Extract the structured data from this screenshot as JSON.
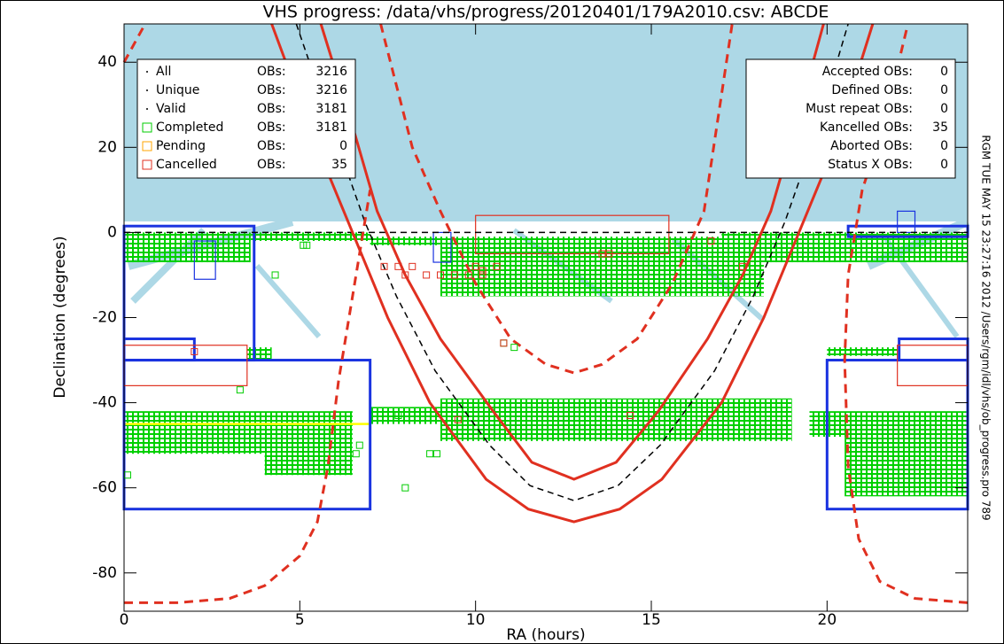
{
  "chart_data": {
    "type": "scatter",
    "title": "VHS progress: /data/vhs/progress/20120401/179A2010.csv: ABCDE",
    "xlabel": "RA (hours)",
    "ylabel": "Declination (degrees)",
    "side_note": "RGM TUE MAY 15 23:27:16 2012 /Users/rgm/idl/vhs/ob_progress.pro 789",
    "xlim": [
      0,
      24
    ],
    "ylim": [
      -89,
      49
    ],
    "xticks": [
      0,
      5,
      10,
      15,
      20
    ],
    "yticks": [
      -80,
      -60,
      -40,
      -20,
      0,
      20,
      40
    ],
    "legend": [
      {
        "name": "All",
        "unit": "OBs:",
        "count": 3216,
        "symbol": "dot",
        "color": "#000000"
      },
      {
        "name": "Unique",
        "unit": "OBs:",
        "count": 3216,
        "symbol": "dot",
        "color": "#000000"
      },
      {
        "name": "Valid",
        "unit": "OBs:",
        "count": 3181,
        "symbol": "dot",
        "color": "#000000"
      },
      {
        "name": "Completed",
        "unit": "OBs:",
        "count": 3181,
        "symbol": "square",
        "color": "#00cc00"
      },
      {
        "name": "Pending",
        "unit": "OBs:",
        "count": 0,
        "symbol": "square",
        "color": "#ffa500"
      },
      {
        "name": "Cancelled",
        "unit": "OBs:",
        "count": 35,
        "symbol": "square",
        "color": "#e03020"
      }
    ],
    "status_counts": [
      {
        "name": "Accepted OBs:",
        "count": 0
      },
      {
        "name": "Defined OBs:",
        "count": 0
      },
      {
        "name": "Must repeat OBs:",
        "count": 0
      },
      {
        "name": "Kancelled OBs:",
        "count": 35
      },
      {
        "name": "Aborted OBs:",
        "count": 0
      },
      {
        "name": "Status X OBs:",
        "count": 0
      }
    ],
    "fields": [
      {
        "color": "#00cc00",
        "fill": "hatch",
        "width": 0,
        "boxes": [
          [
            0,
            3.6,
            -7,
            0
          ],
          [
            3.6,
            7,
            -2,
            0
          ],
          [
            7,
            17.5,
            -3,
            -1
          ],
          [
            9,
            18.2,
            -15,
            -3
          ],
          [
            17,
            24,
            -7,
            0
          ],
          [
            3.5,
            4.2,
            -30,
            -27
          ],
          [
            7,
            9,
            -45,
            -41
          ],
          [
            9,
            19,
            -49,
            -39
          ],
          [
            0,
            6.5,
            -52,
            -42
          ],
          [
            4,
            6.5,
            -57,
            -52
          ],
          [
            19.5,
            24,
            -48,
            -42
          ],
          [
            20.5,
            24,
            -62,
            -48
          ],
          [
            20,
            22,
            -29,
            -27
          ]
        ]
      },
      {
        "color": "#ffff00",
        "fill": "none",
        "width": 2.5,
        "boxes": [
          [
            0,
            7,
            -65,
            -45
          ]
        ]
      },
      {
        "color": "#1a33e0",
        "fill": "none",
        "width": 3,
        "boxes": [
          [
            0,
            3.7,
            -30,
            1.5
          ],
          [
            0,
            2,
            -30,
            -25
          ],
          [
            0,
            7,
            -65,
            -30
          ],
          [
            20,
            24,
            -65,
            -30
          ],
          [
            20.6,
            24,
            -1,
            1.5
          ],
          [
            22.05,
            24,
            -30,
            -25
          ]
        ]
      },
      {
        "color": "#1a33e0",
        "fill": "none",
        "width": 1.2,
        "boxes": [
          [
            2,
            2.6,
            -11,
            -2
          ],
          [
            8.8,
            9.3,
            -7,
            0
          ],
          [
            22,
            22.5,
            0,
            5
          ]
        ]
      },
      {
        "color": "#e03020",
        "fill": "none",
        "width": 1.2,
        "boxes": [
          [
            10,
            15.5,
            -5,
            4
          ],
          [
            0,
            3.5,
            -36,
            -26.5
          ],
          [
            22,
            24,
            -36,
            -26.5
          ]
        ]
      }
    ],
    "curves": [
      {
        "color": "#000000",
        "dash": true,
        "width": 1.5,
        "x": [
          0,
          24
        ],
        "y": [
          0,
          0
        ]
      },
      {
        "color": "#e03020",
        "dash": false,
        "width": 3,
        "x": [
          4.2,
          5.5,
          6.5,
          7.5,
          8.7,
          10.3,
          11.5,
          12.8,
          14.1,
          15.3,
          17,
          18.2,
          19.2,
          20.2,
          21.3
        ],
        "y": [
          49,
          20,
          0,
          -20,
          -40,
          -58,
          -65,
          -68,
          -65,
          -58,
          -40,
          -20,
          0,
          20,
          49
        ]
      },
      {
        "color": "#e03020",
        "dash": false,
        "width": 3,
        "x": [
          5.6,
          6.5,
          7.2,
          8,
          9,
          10.5,
          11.6,
          12.8,
          14,
          15.2,
          16.6,
          17.6,
          18.4,
          19.1,
          19.9
        ],
        "y": [
          49,
          25,
          5,
          -10,
          -25,
          -42,
          -54,
          -58,
          -54,
          -42,
          -25,
          -10,
          5,
          25,
          49
        ]
      },
      {
        "color": "#000000",
        "dash": true,
        "width": 1.5,
        "x": [
          4.9,
          6,
          6.85,
          7.75,
          8.85,
          10.4,
          11.55,
          12.8,
          14.05,
          15.25,
          16.8,
          17.9,
          18.8,
          19.65,
          20.6
        ],
        "y": [
          49,
          22.5,
          2.5,
          -15,
          -32.5,
          -50,
          -59.5,
          -63,
          -59.5,
          -50,
          -32.5,
          -15,
          2.5,
          22.5,
          49
        ]
      },
      {
        "color": "#e03020",
        "dash": true,
        "width": 3,
        "x": [
          7.3,
          8.2,
          9,
          10,
          11,
          12,
          12.8,
          13.6,
          14.6,
          15.6,
          16.5,
          17.3
        ],
        "y": [
          49,
          20,
          5,
          -12,
          -25,
          -31,
          -33,
          -31,
          -25,
          -12,
          5,
          49
        ]
      },
      {
        "color": "#e03020",
        "dash": true,
        "width": 3,
        "x": [
          0,
          1.5,
          3,
          4,
          5,
          5.5,
          5.8,
          6.1,
          6.5,
          7
        ],
        "y": [
          -87,
          -87,
          -86,
          -83,
          -76,
          -68,
          -55,
          -35,
          -15,
          10
        ]
      },
      {
        "color": "#e03020",
        "dash": true,
        "width": 3,
        "x": [
          24,
          22.5,
          21.5,
          20.9,
          20.6,
          20.5,
          20.6,
          21,
          21.6,
          22.3
        ],
        "y": [
          -87,
          -86,
          -82,
          -72,
          -55,
          -30,
          -10,
          10,
          25,
          49
        ]
      },
      {
        "color": "#e03020",
        "dash": true,
        "width": 3,
        "x": [
          0,
          0.6
        ],
        "y": [
          40,
          49
        ]
      }
    ],
    "series": [
      {
        "color": "#00cc00",
        "x": [
          4.3,
          5.1,
          5.2,
          3.3,
          6.7,
          6.6,
          0.1,
          8,
          8.7,
          8.9,
          10.8,
          11.1,
          7.8
        ],
        "y": [
          -10,
          -3,
          -3,
          -37,
          -50,
          -52,
          -57,
          -60,
          -52,
          -52,
          -26,
          -27,
          -43
        ]
      },
      {
        "color": "#e03020",
        "x": [
          7.4,
          7.8,
          8.2,
          8.6,
          9,
          9.4,
          9.8,
          10.2,
          10.6,
          13.6,
          13.8,
          14.4,
          9.5,
          17.6,
          16.7,
          10.8,
          2,
          8,
          10,
          10.2
        ],
        "y": [
          -8,
          -8,
          -8,
          -10,
          -10,
          -10,
          -10,
          -9,
          -8,
          -5,
          -5,
          -43,
          -44,
          -8,
          -2,
          -26,
          -28,
          -10,
          -8,
          -10
        ]
      }
    ]
  }
}
